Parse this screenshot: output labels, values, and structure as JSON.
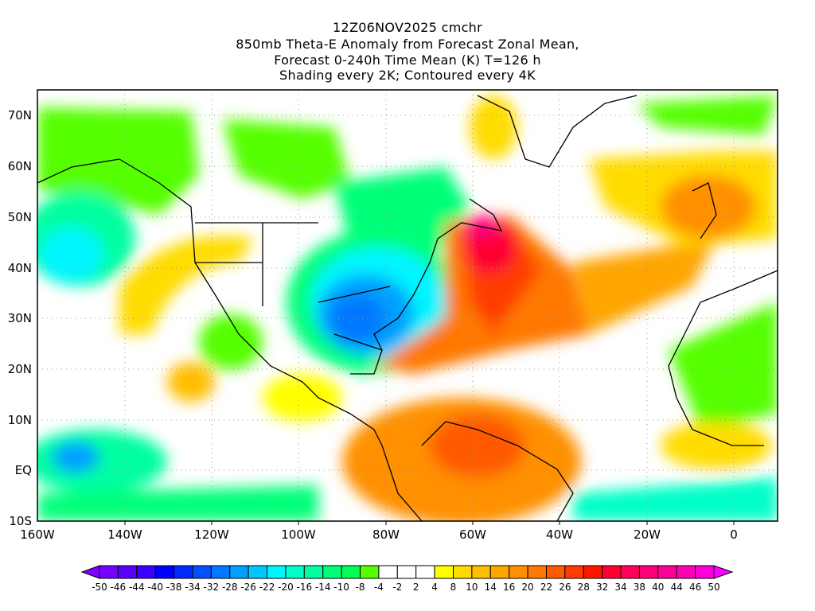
{
  "title": {
    "line1": "12Z06NOV2025 cmchr",
    "line2": "850mb Theta-E Anomaly from Forecast Zonal Mean,",
    "line3": "Forecast 0-240h Time Mean (K) T=126 h",
    "line4": "Shading every 2K; Contoured every 4K"
  },
  "axes": {
    "lat_labels": [
      "70N",
      "60N",
      "50N",
      "40N",
      "30N",
      "20N",
      "10N",
      "EQ",
      "10S"
    ],
    "lon_labels": [
      "160W",
      "140W",
      "120W",
      "100W",
      "80W",
      "60W",
      "40W",
      "20W",
      "0"
    ]
  },
  "colorbar": {
    "labels": [
      "-50",
      "-46",
      "-44",
      "-40",
      "-38",
      "-34",
      "-32",
      "-28",
      "-26",
      "-22",
      "-20",
      "-16",
      "-14",
      "-10",
      "-8",
      "-4",
      "-2",
      "2",
      "4",
      "8",
      "10",
      "14",
      "16",
      "20",
      "22",
      "26",
      "28",
      "32",
      "34",
      "38",
      "40",
      "44",
      "46",
      "50"
    ],
    "low_arrow_color": "#8000ff",
    "high_arrow_color": "#ff00ff",
    "colors": [
      "#7800ff",
      "#5a00ff",
      "#3c00ff",
      "#0000ff",
      "#0028ff",
      "#0050ff",
      "#0078ff",
      "#00a0ff",
      "#00c8ff",
      "#00f5ff",
      "#00ffc8",
      "#00ffa0",
      "#00ff78",
      "#00ff50",
      "#55ff00",
      "#ffffff",
      "#ffffff",
      "#ffffff",
      "#ffff00",
      "#ffdc00",
      "#ffbe00",
      "#ffa500",
      "#ff9000",
      "#ff7800",
      "#ff5a00",
      "#ff3c00",
      "#ff1400",
      "#ff0032",
      "#ff005a",
      "#ff0078",
      "#ff0096",
      "#ff00b4",
      "#ff00dc"
    ]
  }
}
